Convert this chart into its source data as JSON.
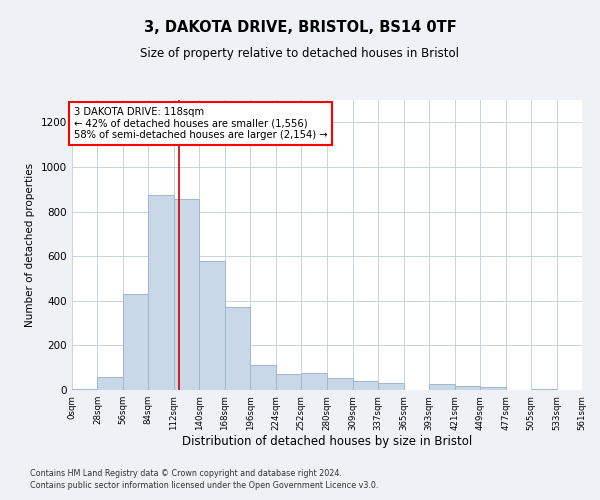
{
  "title": "3, DAKOTA DRIVE, BRISTOL, BS14 0TF",
  "subtitle": "Size of property relative to detached houses in Bristol",
  "xlabel": "Distribution of detached houses by size in Bristol",
  "ylabel": "Number of detached properties",
  "bar_color": "#c8d8e8",
  "bar_edge_color": "#a0b8cc",
  "vline_color": "#cc0000",
  "vline_x": 118,
  "annotation_text": "3 DAKOTA DRIVE: 118sqm\n← 42% of detached houses are smaller (1,556)\n58% of semi-detached houses are larger (2,154) →",
  "footer1": "Contains HM Land Registry data © Crown copyright and database right 2024.",
  "footer2": "Contains public sector information licensed under the Open Government Licence v3.0.",
  "bin_edges": [
    0,
    28,
    56,
    84,
    112,
    140,
    168,
    196,
    224,
    252,
    280,
    309,
    337,
    365,
    393,
    421,
    449,
    477,
    505,
    533,
    561
  ],
  "bin_labels": [
    "0sqm",
    "28sqm",
    "56sqm",
    "84sqm",
    "112sqm",
    "140sqm",
    "168sqm",
    "196sqm",
    "224sqm",
    "252sqm",
    "280sqm",
    "309sqm",
    "337sqm",
    "365sqm",
    "393sqm",
    "421sqm",
    "449sqm",
    "477sqm",
    "505sqm",
    "533sqm",
    "561sqm"
  ],
  "counts": [
    5,
    60,
    430,
    875,
    855,
    580,
    370,
    110,
    70,
    75,
    55,
    40,
    30,
    0,
    25,
    20,
    15,
    0,
    3,
    0
  ],
  "ylim": [
    0,
    1300
  ],
  "yticks": [
    0,
    200,
    400,
    600,
    800,
    1000,
    1200
  ],
  "background_color": "#eef2f7",
  "plot_bg_color": "#ffffff",
  "grid_color": "#c8d4e0"
}
